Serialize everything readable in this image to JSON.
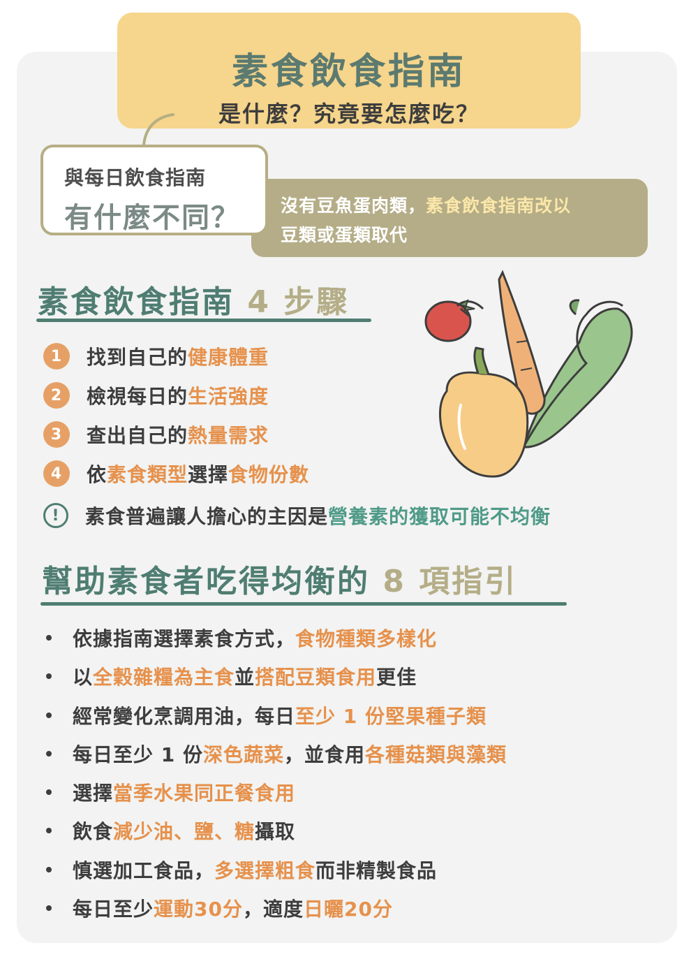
{
  "header": {
    "title": "素食飲食指南",
    "subtitle": "是什麼？究竟要怎麼吃？"
  },
  "question": {
    "line1": "與每日飲食指南",
    "line2": "有什麼不同？"
  },
  "answer": {
    "part1": "沒有豆魚蛋肉類，",
    "part2": "素食飲食指南改以",
    "part3": "豆類或蛋類取代"
  },
  "steps_section": {
    "title": "素食飲食指南",
    "number": "4 步驟",
    "steps": [
      {
        "num": "1",
        "plain": "找到自己的",
        "highlight": "健康體重"
      },
      {
        "num": "2",
        "plain": "檢視每日的",
        "highlight": "生活強度"
      },
      {
        "num": "3",
        "plain": "查出自己的",
        "highlight": "熱量需求"
      },
      {
        "num": "4",
        "pre": "依",
        "highlight1": "素食類型",
        "mid": "選擇",
        "highlight2": "食物份數"
      }
    ],
    "warning": {
      "icon": "!",
      "plain": "素食普遍讓人擔心的主因是",
      "highlight": "營養素的獲取可能不均衡"
    }
  },
  "guide_section": {
    "title": "幫助素食者吃得均衡的",
    "number": "8 項指引",
    "items": [
      {
        "a": "依據指南選擇素食方式，",
        "b": "食物種類多樣化"
      },
      {
        "a": "以",
        "b": "全穀雜糧為主食",
        "c": "並",
        "d": "搭配豆類食用",
        "e": "更佳"
      },
      {
        "a": "經常變化烹調用油，每日",
        "b": "至少 1 份堅果種子類"
      },
      {
        "a": "每日至少 1 份",
        "b": "深色蔬菜",
        "c": "，並食用",
        "d": "各種菇類與藻類"
      },
      {
        "a": "選擇",
        "b": "當季水果同正餐食用"
      },
      {
        "a": "飲食",
        "b": "減少油、鹽、糖",
        "c": "攝取"
      },
      {
        "a": "慎選加工食品，",
        "b": "多選擇粗食",
        "c": "而非精製食品"
      },
      {
        "a": "每日至少",
        "b": "運動30分",
        "c": "，適度",
        "d": "日曬20分"
      }
    ]
  },
  "colors": {
    "banner": "#f6d58c",
    "olive": "#b4ad87",
    "green": "#4f7d71",
    "orange": "#e6914c",
    "card": "#f2f3f2"
  },
  "illustration": {
    "icons": [
      "tomato-icon",
      "carrot-icon",
      "bok-choy-icon",
      "bell-pepper-icon"
    ]
  }
}
